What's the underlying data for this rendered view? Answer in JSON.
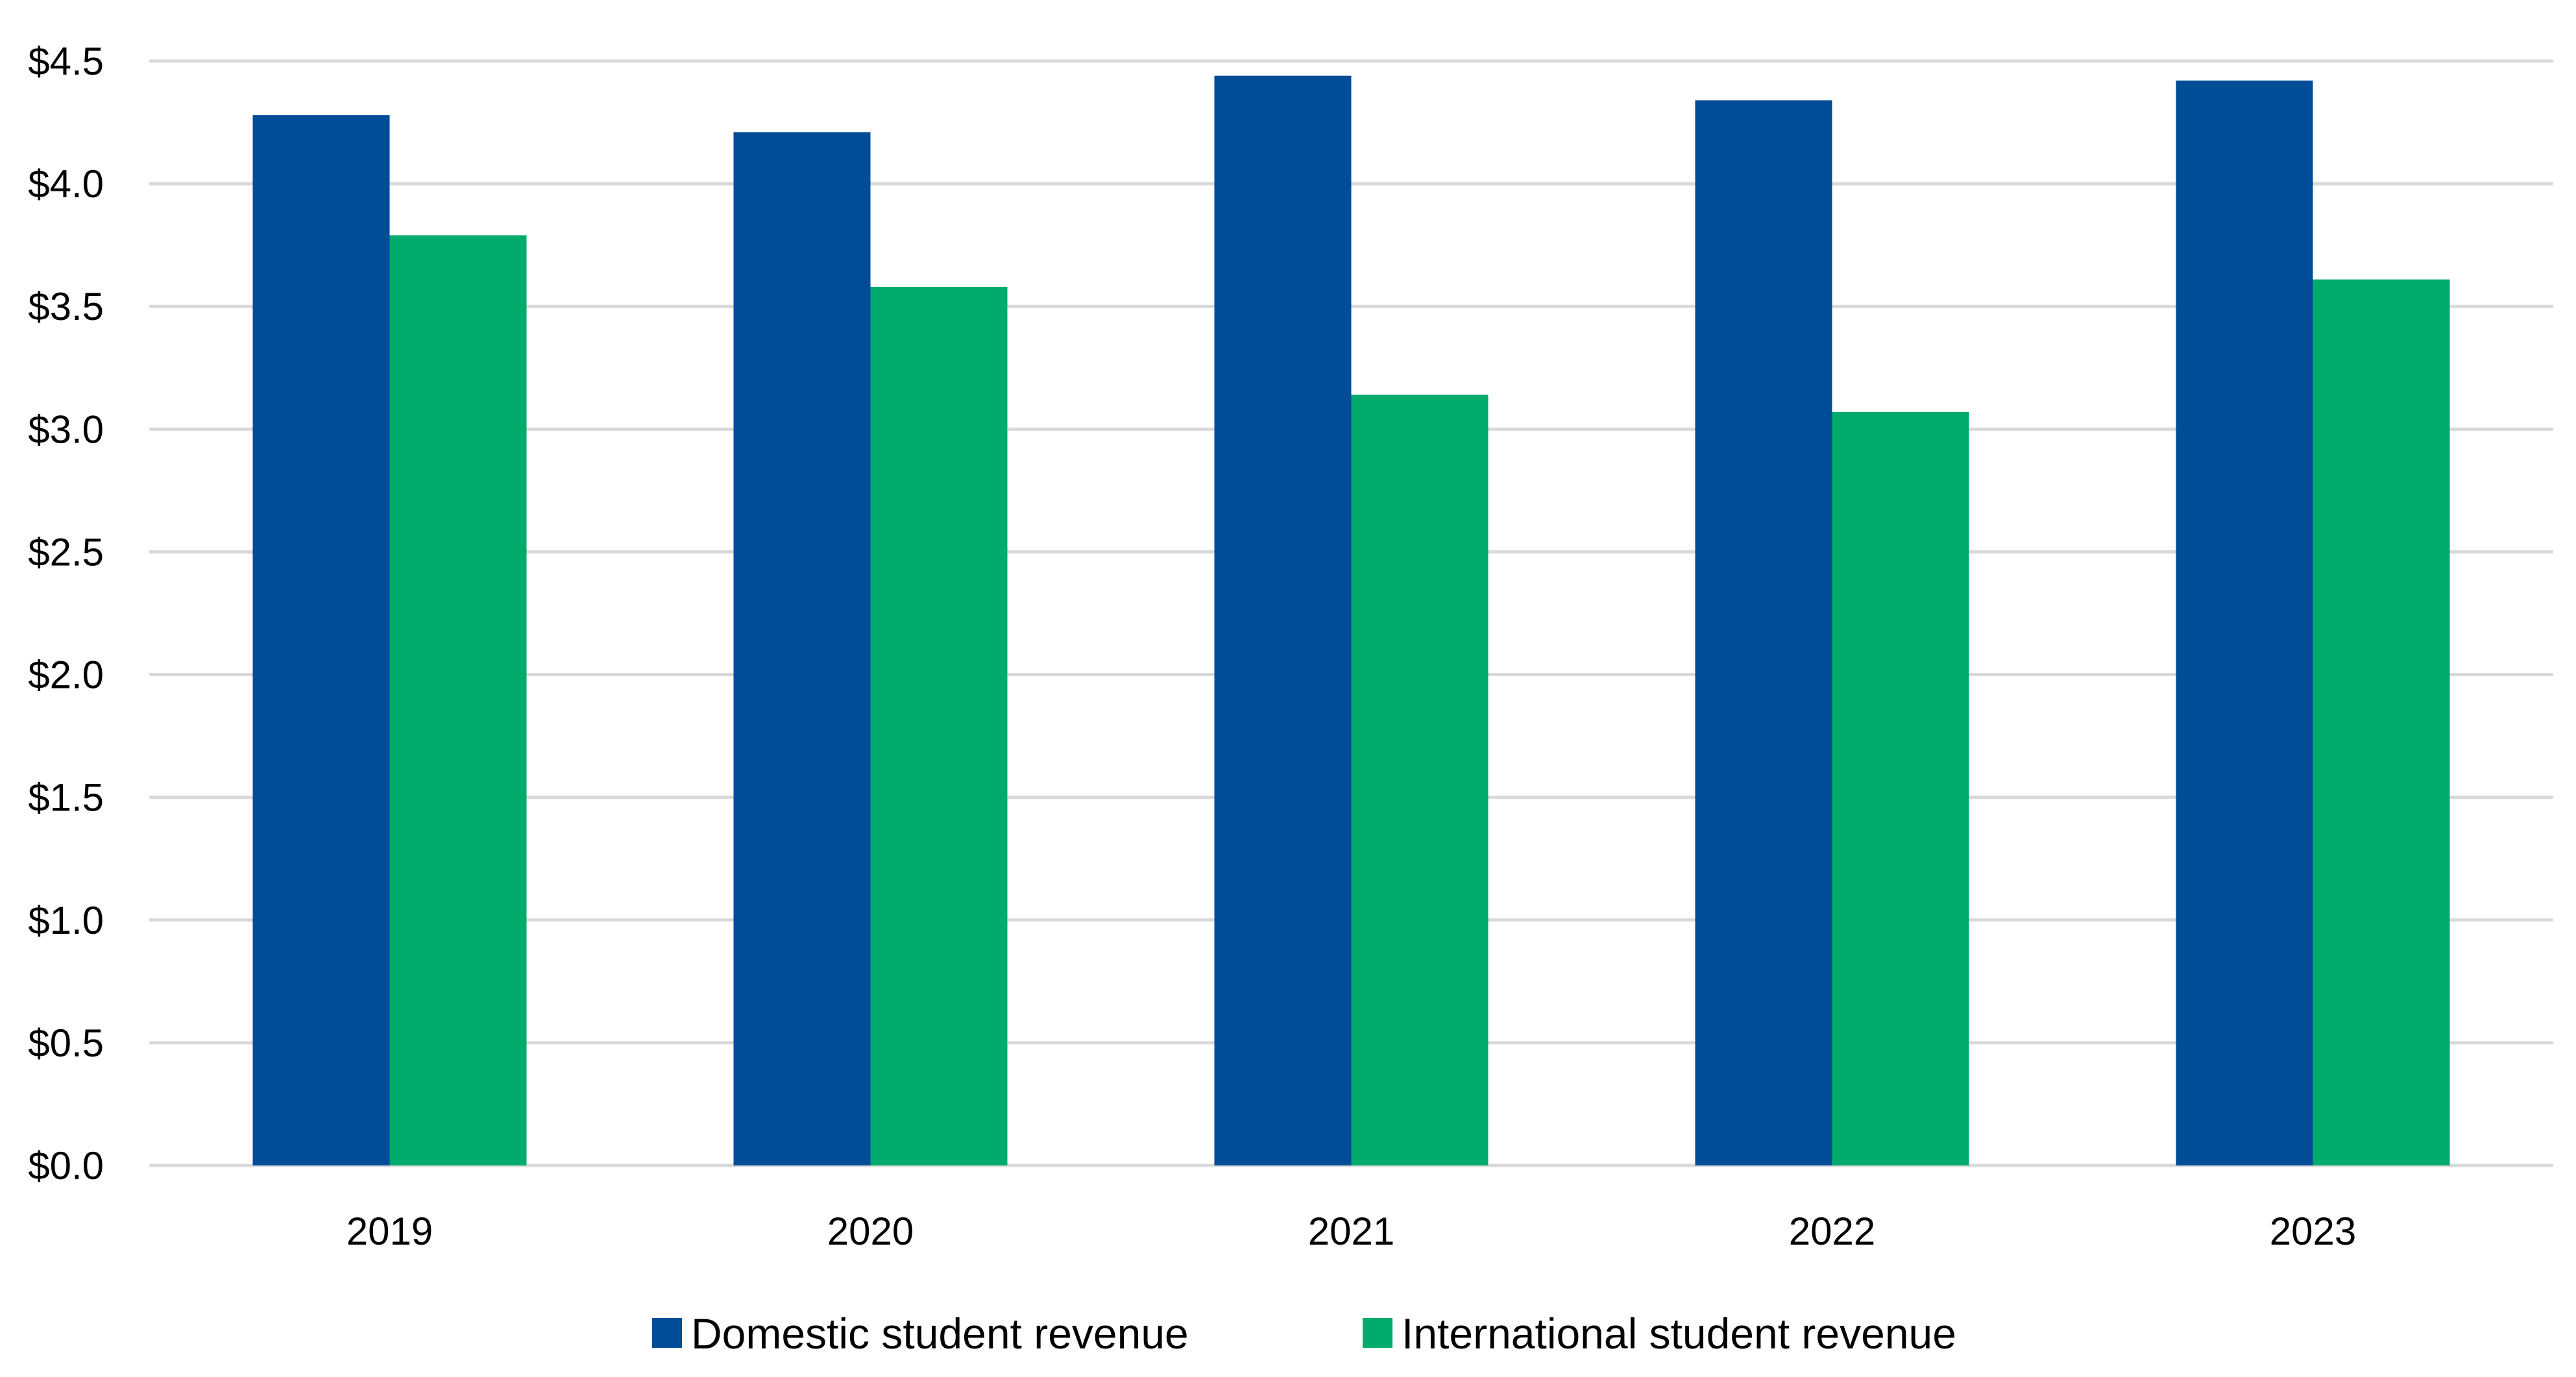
{
  "chart_data": {
    "type": "bar",
    "title": "",
    "xlabel": "",
    "ylabel": "",
    "categories": [
      "2019",
      "2020",
      "2021",
      "2022",
      "2023"
    ],
    "series": [
      {
        "name": "Domestic student revenue",
        "color": "#004C97",
        "values": [
          4.28,
          4.21,
          4.44,
          4.34,
          4.42
        ]
      },
      {
        "name": "International student revenue",
        "color": "#00AB6B",
        "values": [
          3.79,
          3.58,
          3.14,
          3.07,
          3.61
        ]
      }
    ],
    "ylim": [
      0,
      4.5
    ],
    "yticks": [
      0,
      0.5,
      1.0,
      1.5,
      2.0,
      2.5,
      3.0,
      3.5,
      4.0,
      4.5
    ],
    "ytick_labels": [
      "$0.0",
      "$0.5",
      "$1.0",
      "$1.5",
      "$2.0",
      "$2.5",
      "$3.0",
      "$3.5",
      "$4.0",
      "$4.5"
    ],
    "grid": true,
    "grid_color": "#D9D9D9",
    "legend_position": "bottom"
  }
}
